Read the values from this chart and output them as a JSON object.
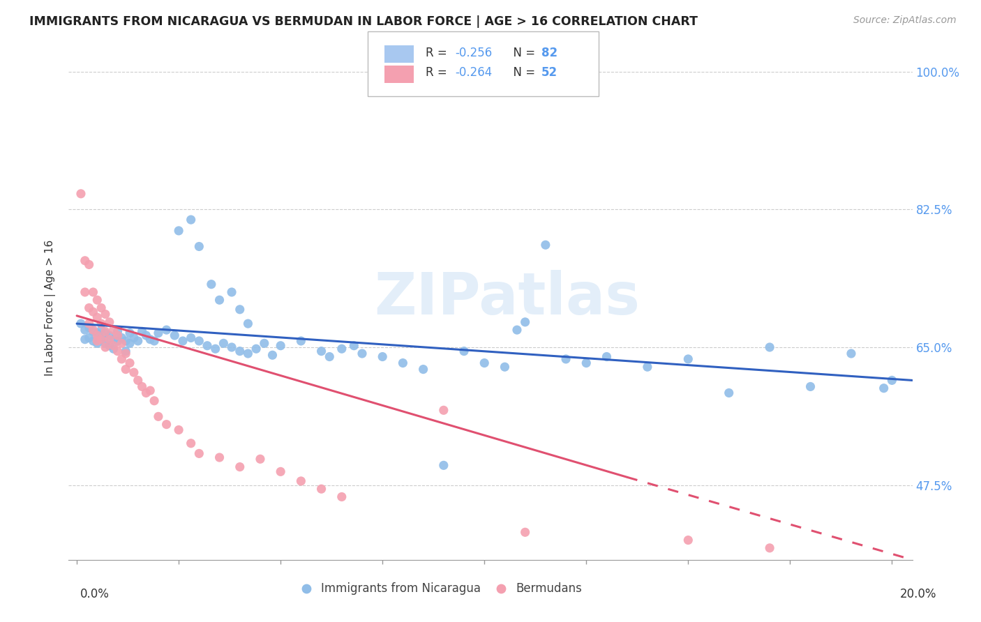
{
  "title": "IMMIGRANTS FROM NICARAGUA VS BERMUDAN IN LABOR FORCE | AGE > 16 CORRELATION CHART",
  "source": "Source: ZipAtlas.com",
  "ylabel": "In Labor Force | Age > 16",
  "ytick_values": [
    0.475,
    0.65,
    0.825,
    1.0
  ],
  "xlim": [
    -0.002,
    0.205
  ],
  "ylim": [
    0.38,
    1.02
  ],
  "watermark": "ZIPatlas",
  "nicaragua_color": "#90bde8",
  "bermuda_color": "#f4a0b0",
  "trend_nicaragua_color": "#3060c0",
  "trend_bermuda_color": "#e05070",
  "nicaragua_scatter": [
    [
      0.001,
      0.68
    ],
    [
      0.002,
      0.672
    ],
    [
      0.002,
      0.66
    ],
    [
      0.003,
      0.675
    ],
    [
      0.003,
      0.662
    ],
    [
      0.004,
      0.67
    ],
    [
      0.004,
      0.658
    ],
    [
      0.005,
      0.668
    ],
    [
      0.005,
      0.655
    ],
    [
      0.006,
      0.672
    ],
    [
      0.006,
      0.66
    ],
    [
      0.007,
      0.668
    ],
    [
      0.007,
      0.655
    ],
    [
      0.008,
      0.665
    ],
    [
      0.008,
      0.652
    ],
    [
      0.009,
      0.66
    ],
    [
      0.009,
      0.648
    ],
    [
      0.01,
      0.67
    ],
    [
      0.01,
      0.658
    ],
    [
      0.011,
      0.662
    ],
    [
      0.012,
      0.658
    ],
    [
      0.012,
      0.645
    ],
    [
      0.013,
      0.668
    ],
    [
      0.013,
      0.655
    ],
    [
      0.014,
      0.662
    ],
    [
      0.015,
      0.658
    ],
    [
      0.016,
      0.67
    ],
    [
      0.017,
      0.665
    ],
    [
      0.018,
      0.66
    ],
    [
      0.019,
      0.658
    ],
    [
      0.025,
      0.798
    ],
    [
      0.028,
      0.812
    ],
    [
      0.03,
      0.778
    ],
    [
      0.033,
      0.73
    ],
    [
      0.035,
      0.71
    ],
    [
      0.038,
      0.72
    ],
    [
      0.04,
      0.698
    ],
    [
      0.042,
      0.68
    ],
    [
      0.02,
      0.668
    ],
    [
      0.022,
      0.672
    ],
    [
      0.024,
      0.665
    ],
    [
      0.026,
      0.658
    ],
    [
      0.028,
      0.662
    ],
    [
      0.03,
      0.658
    ],
    [
      0.032,
      0.652
    ],
    [
      0.034,
      0.648
    ],
    [
      0.036,
      0.655
    ],
    [
      0.038,
      0.65
    ],
    [
      0.04,
      0.645
    ],
    [
      0.042,
      0.642
    ],
    [
      0.044,
      0.648
    ],
    [
      0.046,
      0.655
    ],
    [
      0.048,
      0.64
    ],
    [
      0.05,
      0.652
    ],
    [
      0.055,
      0.658
    ],
    [
      0.06,
      0.645
    ],
    [
      0.062,
      0.638
    ],
    [
      0.065,
      0.648
    ],
    [
      0.068,
      0.652
    ],
    [
      0.07,
      0.642
    ],
    [
      0.075,
      0.638
    ],
    [
      0.08,
      0.63
    ],
    [
      0.085,
      0.622
    ],
    [
      0.09,
      0.5
    ],
    [
      0.095,
      0.645
    ],
    [
      0.1,
      0.63
    ],
    [
      0.105,
      0.625
    ],
    [
      0.108,
      0.672
    ],
    [
      0.11,
      0.682
    ],
    [
      0.115,
      0.78
    ],
    [
      0.12,
      0.635
    ],
    [
      0.125,
      0.63
    ],
    [
      0.13,
      0.638
    ],
    [
      0.14,
      0.625
    ],
    [
      0.15,
      0.635
    ],
    [
      0.16,
      0.592
    ],
    [
      0.17,
      0.65
    ],
    [
      0.18,
      0.6
    ],
    [
      0.19,
      0.642
    ],
    [
      0.198,
      0.598
    ],
    [
      0.2,
      0.608
    ]
  ],
  "bermuda_scatter": [
    [
      0.001,
      0.845
    ],
    [
      0.002,
      0.76
    ],
    [
      0.002,
      0.72
    ],
    [
      0.003,
      0.755
    ],
    [
      0.003,
      0.7
    ],
    [
      0.003,
      0.68
    ],
    [
      0.004,
      0.72
    ],
    [
      0.004,
      0.695
    ],
    [
      0.004,
      0.672
    ],
    [
      0.005,
      0.71
    ],
    [
      0.005,
      0.688
    ],
    [
      0.005,
      0.665
    ],
    [
      0.005,
      0.658
    ],
    [
      0.006,
      0.7
    ],
    [
      0.006,
      0.68
    ],
    [
      0.006,
      0.66
    ],
    [
      0.007,
      0.692
    ],
    [
      0.007,
      0.67
    ],
    [
      0.007,
      0.65
    ],
    [
      0.008,
      0.682
    ],
    [
      0.008,
      0.66
    ],
    [
      0.009,
      0.672
    ],
    [
      0.009,
      0.652
    ],
    [
      0.01,
      0.665
    ],
    [
      0.01,
      0.645
    ],
    [
      0.011,
      0.655
    ],
    [
      0.011,
      0.635
    ],
    [
      0.012,
      0.642
    ],
    [
      0.012,
      0.622
    ],
    [
      0.013,
      0.63
    ],
    [
      0.014,
      0.618
    ],
    [
      0.015,
      0.608
    ],
    [
      0.016,
      0.6
    ],
    [
      0.017,
      0.592
    ],
    [
      0.018,
      0.595
    ],
    [
      0.019,
      0.582
    ],
    [
      0.02,
      0.562
    ],
    [
      0.022,
      0.552
    ],
    [
      0.025,
      0.545
    ],
    [
      0.028,
      0.528
    ],
    [
      0.03,
      0.515
    ],
    [
      0.035,
      0.51
    ],
    [
      0.04,
      0.498
    ],
    [
      0.045,
      0.508
    ],
    [
      0.05,
      0.492
    ],
    [
      0.055,
      0.48
    ],
    [
      0.06,
      0.47
    ],
    [
      0.065,
      0.46
    ],
    [
      0.09,
      0.57
    ],
    [
      0.11,
      0.415
    ],
    [
      0.15,
      0.405
    ],
    [
      0.17,
      0.395
    ]
  ],
  "nic_trend": [
    0.0,
    0.205,
    0.68,
    0.608
  ],
  "ber_trend_solid": [
    0.0,
    0.135,
    0.69,
    0.485
  ],
  "ber_trend_dashed": [
    0.135,
    0.205,
    0.485,
    0.38
  ]
}
